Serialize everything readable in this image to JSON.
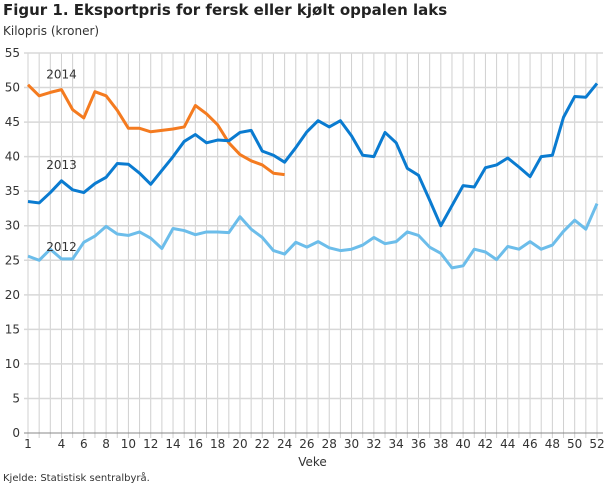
{
  "chart_data": {
    "type": "line",
    "title": "Figur 1. Eksportpris for fersk eller kjølt oppalen laks",
    "ylabel": "Kilopris (kroner)",
    "xlabel": "Veke",
    "source": "Kjelde: Statistisk sentralbyrå.",
    "ylim": [
      0,
      55
    ],
    "yticks": [
      0,
      5,
      10,
      15,
      20,
      25,
      30,
      35,
      40,
      45,
      50,
      55
    ],
    "xlim": [
      1,
      52
    ],
    "xticks": [
      1,
      4,
      6,
      8,
      10,
      12,
      14,
      16,
      18,
      20,
      22,
      24,
      26,
      28,
      30,
      32,
      34,
      36,
      38,
      40,
      42,
      44,
      46,
      48,
      50,
      52
    ],
    "grid": true,
    "series": [
      {
        "name": "2014",
        "color": "#f47b20",
        "label_at_week": 4,
        "values": [
          50.4,
          48.8,
          49.3,
          49.7,
          46.8,
          45.6,
          49.4,
          48.8,
          46.7,
          44.1,
          44.1,
          43.6,
          43.8,
          44.0,
          44.3,
          47.4,
          46.2,
          44.6,
          42.0,
          40.3,
          39.4,
          38.8,
          37.6,
          37.4
        ]
      },
      {
        "name": "2013",
        "color": "#0a7bd0",
        "label_at_week": 4,
        "values": [
          33.5,
          33.3,
          34.8,
          36.5,
          35.2,
          34.8,
          36.1,
          37.0,
          39.0,
          38.9,
          37.6,
          36.0,
          38.0,
          40.0,
          42.2,
          43.2,
          42.0,
          42.4,
          42.3,
          43.5,
          43.8,
          40.8,
          40.2,
          39.2,
          41.3,
          43.6,
          45.2,
          44.3,
          45.2,
          43.0,
          40.2,
          40.0,
          43.5,
          42.0,
          38.3,
          37.3,
          33.7,
          30.0,
          32.9,
          35.8,
          35.6,
          38.4,
          38.8,
          39.8,
          38.5,
          37.1,
          40.0,
          40.2,
          45.7,
          48.7,
          48.6,
          50.6
        ]
      },
      {
        "name": "2012",
        "color": "#6cbdea",
        "label_at_week": 4,
        "values": [
          25.6,
          25.0,
          26.6,
          25.2,
          25.2,
          27.6,
          28.5,
          29.9,
          28.8,
          28.6,
          29.1,
          28.2,
          26.7,
          29.6,
          29.3,
          28.7,
          29.1,
          29.1,
          29.0,
          31.3,
          29.5,
          28.3,
          26.4,
          25.9,
          27.6,
          26.9,
          27.7,
          26.8,
          26.4,
          26.6,
          27.2,
          28.3,
          27.4,
          27.7,
          29.1,
          28.6,
          26.9,
          26.0,
          23.9,
          24.2,
          26.6,
          26.2,
          25.1,
          27.0,
          26.6,
          27.7,
          26.6,
          27.2,
          29.2,
          30.8,
          29.5,
          33.2
        ]
      }
    ]
  }
}
